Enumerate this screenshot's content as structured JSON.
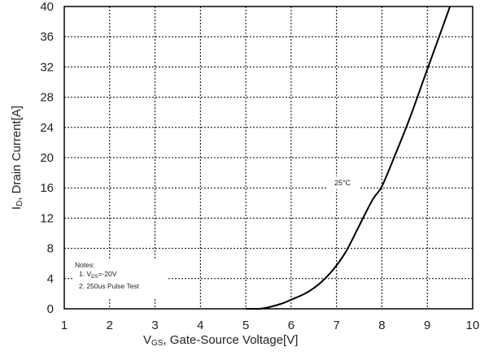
{
  "chart_data": {
    "type": "line",
    "xlabel": {
      "main": "V",
      "sub": "GS",
      "rest": ", Gate-Source Voltage[V]"
    },
    "ylabel": {
      "main": "I",
      "sub": "D",
      "rest": ", Drain Current[A]"
    },
    "xlim": [
      1,
      10
    ],
    "ylim": [
      0,
      40
    ],
    "x_ticks": [
      1,
      2,
      3,
      4,
      5,
      6,
      7,
      8,
      9,
      10
    ],
    "y_ticks": [
      0,
      4,
      8,
      12,
      16,
      20,
      24,
      28,
      32,
      36,
      40
    ],
    "grid": true,
    "series": [
      {
        "name": "25°C",
        "x": [
          5.0,
          5.3,
          5.5,
          5.8,
          6.0,
          6.3,
          6.6,
          6.9,
          7.2,
          7.5,
          7.8,
          8.0,
          8.3,
          8.6,
          8.9,
          9.2,
          9.5
        ],
        "y": [
          0.0,
          0.0,
          0.2,
          0.7,
          1.2,
          2.0,
          3.2,
          5.0,
          7.5,
          11.0,
          14.5,
          16.2,
          20.5,
          25.0,
          30.0,
          35.0,
          40.0
        ]
      }
    ],
    "annotations": [
      {
        "text": "25°C"
      }
    ],
    "notes": {
      "title": "Notes:",
      "line1_prefix": "1. V",
      "line1_sub": "DS",
      "line1_rest": "=-20V",
      "line2": "2. 250us Pulse Test"
    }
  }
}
